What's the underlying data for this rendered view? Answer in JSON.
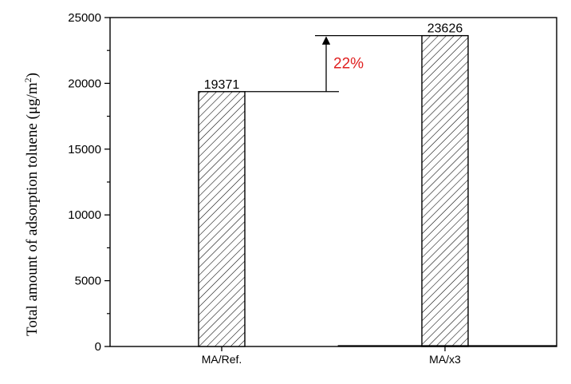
{
  "chart_data": {
    "type": "bar",
    "title": "",
    "xlabel": "",
    "ylabel": "Total amount of adsorption toluene (μg/m²)",
    "ylabel_parts": {
      "main": "Total amount of adsorption toluene (μg/m",
      "sup": "2",
      "close": ")"
    },
    "categories": [
      "MA/Ref.",
      "MA/x3"
    ],
    "values": [
      19371,
      23626
    ],
    "data_labels": [
      "19371",
      "23626"
    ],
    "ylim": [
      0,
      25000
    ],
    "yticks": [
      0,
      5000,
      10000,
      15000,
      20000,
      25000
    ],
    "ytick_labels": [
      "0",
      "5000",
      "10000",
      "15000",
      "20000",
      "25000"
    ],
    "grid": false,
    "legend": "none",
    "bar_fill": "diagonal-hatch",
    "annotation": {
      "text": "22%",
      "color": "#e02020",
      "from_value": 19371,
      "to_value": 23626
    }
  }
}
